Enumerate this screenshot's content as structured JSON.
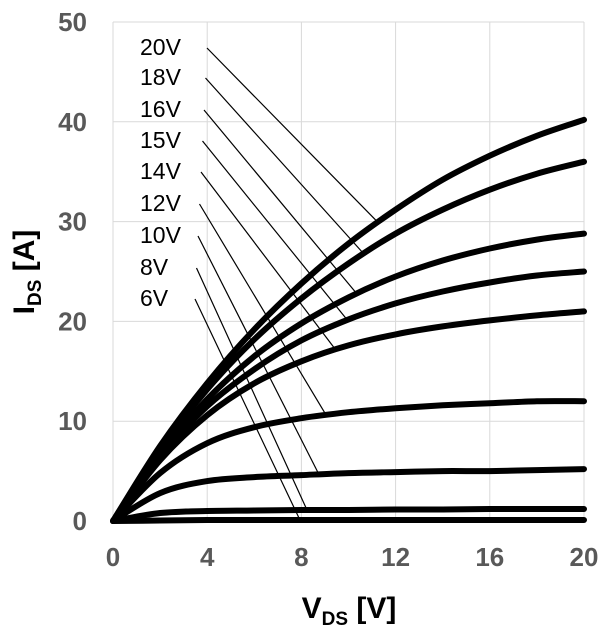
{
  "chart_data": {
    "type": "line",
    "xlabel": "V",
    "xlabel_sub": "DS",
    "xlabel_unit": " [V]",
    "ylabel": "I",
    "ylabel_sub": "DS",
    "ylabel_unit": " [A]",
    "xlim": [
      0,
      20
    ],
    "ylim": [
      0,
      50
    ],
    "x_ticks": [
      "0",
      "4",
      "8",
      "12",
      "16",
      "20"
    ],
    "y_ticks": [
      "0",
      "10",
      "20",
      "30",
      "40",
      "50"
    ],
    "grid": true,
    "x": [
      0,
      2,
      4,
      6,
      8,
      10,
      12,
      14,
      16,
      18,
      20
    ],
    "series": [
      {
        "name": "20V",
        "values": [
          0,
          7.5,
          13.8,
          19.2,
          23.8,
          27.8,
          31.2,
          34.2,
          36.6,
          38.6,
          40.2
        ]
      },
      {
        "name": "18V",
        "values": [
          0,
          7.2,
          13.2,
          18.2,
          22.3,
          25.8,
          28.8,
          31.2,
          33.2,
          34.8,
          36.0
        ]
      },
      {
        "name": "16V",
        "values": [
          0,
          6.7,
          12.2,
          16.5,
          19.8,
          22.4,
          24.5,
          26.1,
          27.3,
          28.2,
          28.8
        ]
      },
      {
        "name": "15V",
        "values": [
          0,
          6.5,
          11.5,
          15.2,
          18.1,
          20.2,
          21.8,
          23.0,
          23.9,
          24.6,
          25.0
        ]
      },
      {
        "name": "14V",
        "values": [
          0,
          6.1,
          10.6,
          13.8,
          16.0,
          17.6,
          18.7,
          19.5,
          20.1,
          20.6,
          21.0
        ]
      },
      {
        "name": "12V",
        "values": [
          0,
          4.8,
          7.8,
          9.4,
          10.3,
          10.9,
          11.3,
          11.6,
          11.8,
          12.0,
          12.0
        ]
      },
      {
        "name": "10V",
        "values": [
          0,
          2.8,
          4.0,
          4.4,
          4.6,
          4.8,
          4.9,
          5.0,
          5.0,
          5.1,
          5.2
        ]
      },
      {
        "name": "8V",
        "values": [
          0,
          0.8,
          1.0,
          1.05,
          1.1,
          1.1,
          1.15,
          1.15,
          1.2,
          1.2,
          1.2
        ]
      },
      {
        "name": "6V",
        "values": [
          0,
          0.05,
          0.1,
          0.1,
          0.1,
          0.1,
          0.1,
          0.1,
          0.1,
          0.1,
          0.1
        ]
      }
    ]
  }
}
